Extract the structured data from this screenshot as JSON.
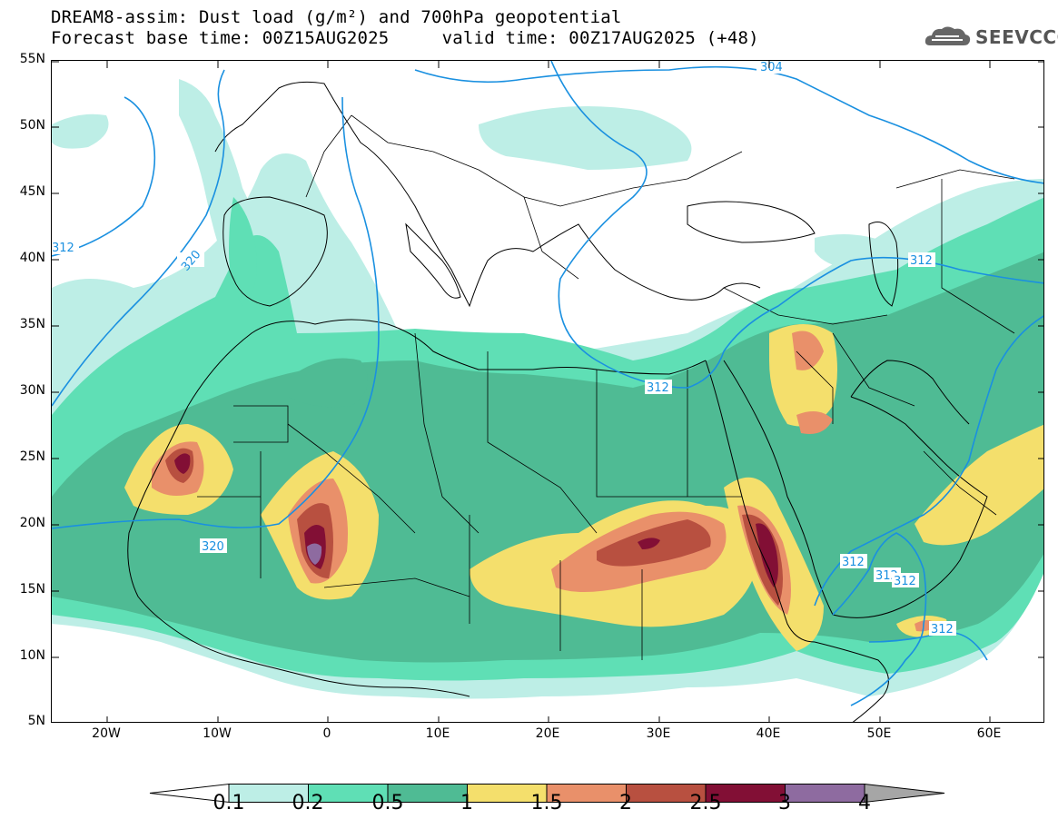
{
  "header": {
    "line1": "DREAM8-assim: Dust load (g/m²) and 700hPa geopotential",
    "line2": "Forecast base time: 00Z15AUG2025     valid time: 00Z17AUG2025 (+48)",
    "logo_text": "SEEVCCC",
    "logo_icon": "cloud-icon"
  },
  "map": {
    "lat_labels": [
      "55N",
      "50N",
      "45N",
      "40N",
      "35N",
      "30N",
      "25N",
      "20N",
      "15N",
      "10N",
      "5N"
    ],
    "lon_labels": [
      "20W",
      "10W",
      "0",
      "10E",
      "20E",
      "30E",
      "40E",
      "50E",
      "60E"
    ],
    "contour_labels": [
      "304",
      "312",
      "320",
      "320",
      "312",
      "312",
      "312",
      "312",
      "312",
      "312"
    ],
    "colors": {
      "c01": "#bdeee6",
      "c02": "#5fdfb5",
      "c05": "#4fbb94",
      "c1": "#f4df6c",
      "c15": "#e9906a",
      "c2": "#b85040",
      "c25": "#820f35",
      "c3": "#8e6ba0",
      "contour": "#1a90e0"
    }
  },
  "colorbar": {
    "labels": [
      "0.1",
      "0.2",
      "0.5",
      "1",
      "1.5",
      "2",
      "2.5",
      "3",
      "4"
    ],
    "colors": [
      "#bdeee6",
      "#5fdfb5",
      "#4fbb94",
      "#f4df6c",
      "#e9906a",
      "#b85040",
      "#820f35",
      "#8e6ba0"
    ],
    "over_color": "#a6a6a6",
    "under_color": "#ffffff"
  }
}
